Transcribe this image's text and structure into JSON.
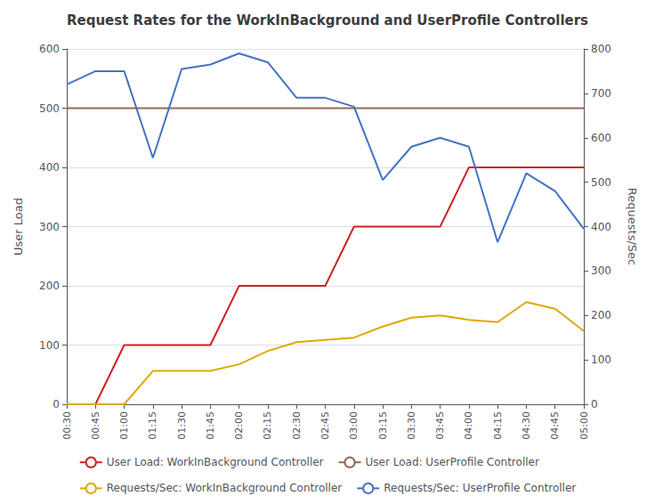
{
  "chart_data": {
    "type": "line",
    "title": "Request Rates for the WorkInBackground and UserProfile Controllers",
    "categories": [
      "00:30",
      "00:45",
      "01:00",
      "01:15",
      "01:30",
      "01:45",
      "02:00",
      "02:15",
      "02:30",
      "02:45",
      "03:00",
      "03:15",
      "03:30",
      "03:45",
      "04:00",
      "04:15",
      "04:30",
      "04:45",
      "05:00"
    ],
    "series": [
      {
        "name": "User Load: WorkInBackground Controller",
        "color": "#cc2222",
        "values": [
          0,
          0,
          100,
          100,
          100,
          100,
          200,
          200,
          200,
          200,
          300,
          300,
          300,
          300,
          400,
          400,
          400,
          400,
          400
        ]
      },
      {
        "name": "User Load: UserProfile Controller",
        "color": "#996655",
        "values": [
          500,
          500,
          500,
          500,
          500,
          500,
          500,
          500,
          500,
          500,
          500,
          500,
          500,
          500,
          500,
          500,
          500,
          500,
          500
        ]
      },
      {
        "name": "Requests/Sec: WorkInBackground Controller",
        "color": "#ddaa00",
        "axis": "y2",
        "values": [
          0,
          0,
          0,
          75,
          75,
          75,
          90,
          120,
          140,
          145,
          150,
          175,
          195,
          200,
          190,
          185,
          230,
          215,
          165
        ]
      },
      {
        "name": "Requests/Sec: UserProfile Controller",
        "color": "#4472c4",
        "axis": "y2",
        "values": [
          720,
          750,
          750,
          555,
          755,
          765,
          790,
          770,
          690,
          690,
          670,
          505,
          580,
          600,
          580,
          365,
          520,
          480,
          395
        ]
      }
    ],
    "ylabel": "User Load",
    "y2label": "Requests/Sec",
    "ylim": [
      0,
      600
    ],
    "yticks": [
      0,
      100,
      200,
      300,
      400,
      500,
      600
    ],
    "y2lim": [
      0,
      800
    ],
    "y2ticks": [
      0,
      100,
      200,
      300,
      400,
      500,
      600,
      700,
      800
    ],
    "grid": true,
    "legend": "bottom"
  }
}
